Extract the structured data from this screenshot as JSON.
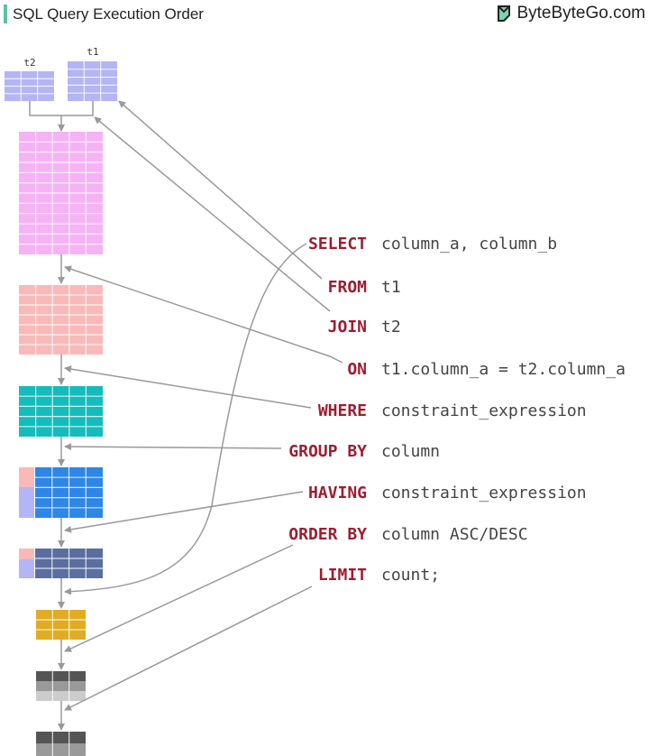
{
  "header": {
    "title": "SQL Query Execution Order",
    "brand": "ByteByteGo.com",
    "accent_color": "#5cc39a"
  },
  "tables": {
    "t1_label": "t1",
    "t2_label": "t2"
  },
  "query": [
    {
      "keyword": "SELECT",
      "value": "column_a, column_b"
    },
    {
      "keyword": "FROM",
      "value": "t1"
    },
    {
      "keyword": "JOIN",
      "value": "t2"
    },
    {
      "keyword": "ON",
      "value": "t1.column_a = t2.column_a"
    },
    {
      "keyword": "WHERE",
      "value": "constraint_expression"
    },
    {
      "keyword": "GROUP BY",
      "value": "column"
    },
    {
      "keyword": "HAVING",
      "value": "constraint_expression"
    },
    {
      "keyword": "ORDER BY",
      "value": "column ASC/DESC"
    },
    {
      "keyword": "LIMIT",
      "value": "count;"
    }
  ],
  "colors": {
    "keyword": "#a01c30",
    "source_table": "#b3b5f5",
    "joined": "#f5b3f5",
    "on_filtered": "#f9b9b9",
    "where": "#14bcbc",
    "group_by": "#2e86e8",
    "having": "#5a6ea0",
    "select": "#e0ac22",
    "order_dark": "#555555",
    "order_mid": "#999999",
    "order_light": "#cccccc"
  }
}
